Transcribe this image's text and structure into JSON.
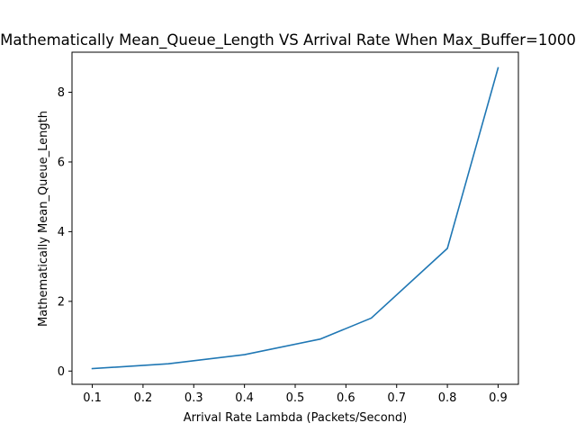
{
  "chart_data": {
    "type": "line",
    "title": "Mathematically Mean_Queue_Length VS Arrival Rate When Max_Buffer=1000",
    "xlabel": "Arrival Rate Lambda (Packets/Second)",
    "ylabel": "Mathematically Mean_Queue_Length",
    "xlim": [
      0.06,
      0.94
    ],
    "ylim": [
      -0.38,
      9.15
    ],
    "xticks": [
      "0.1",
      "0.2",
      "0.3",
      "0.4",
      "0.5",
      "0.6",
      "0.7",
      "0.8",
      "0.9"
    ],
    "yticks": [
      "0",
      "2",
      "4",
      "6",
      "8"
    ],
    "grid": false,
    "series": [
      {
        "color": "#1f77b4",
        "x": [
          0.1,
          0.25,
          0.4,
          0.55,
          0.65,
          0.8,
          0.9
        ],
        "y": [
          0.07,
          0.21,
          0.47,
          0.92,
          1.52,
          3.52,
          8.7
        ]
      }
    ]
  }
}
